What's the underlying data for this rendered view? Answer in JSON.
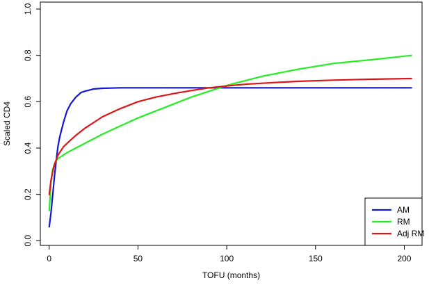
{
  "chart_data": {
    "type": "line",
    "title": "",
    "xlabel": "TOFU  (months)",
    "ylabel": "Scaled CD4",
    "xlim": [
      -5,
      210
    ],
    "ylim": [
      -0.02,
      1.03
    ],
    "xticks": [
      0,
      50,
      100,
      150,
      200
    ],
    "yticks": [
      0.0,
      0.2,
      0.4,
      0.6,
      0.8,
      1.0
    ],
    "xtick_labels": [
      "0",
      "50",
      "100",
      "150",
      "200"
    ],
    "ytick_labels": [
      "0.0",
      "0.2",
      "0.4",
      "0.6",
      "0.8",
      "1.0"
    ],
    "grid": false,
    "legend_position": "bottom-right",
    "series": [
      {
        "name": "AM",
        "color": "#1515d4",
        "x": [
          0,
          1,
          2,
          3,
          4,
          5,
          6,
          8,
          10,
          12,
          15,
          18,
          20,
          25,
          30,
          35,
          40,
          50,
          60,
          80,
          100,
          120,
          150,
          180,
          204
        ],
        "y": [
          0.06,
          0.12,
          0.2,
          0.28,
          0.35,
          0.41,
          0.45,
          0.51,
          0.56,
          0.59,
          0.62,
          0.64,
          0.645,
          0.655,
          0.658,
          0.659,
          0.66,
          0.66,
          0.66,
          0.66,
          0.66,
          0.66,
          0.66,
          0.66,
          0.66
        ]
      },
      {
        "name": "RM",
        "color": "#22ee22",
        "x": [
          0,
          1,
          2,
          3,
          4,
          5,
          8,
          10,
          15,
          20,
          30,
          40,
          50,
          60,
          70,
          80,
          90,
          100,
          110,
          120,
          140,
          160,
          180,
          204
        ],
        "y": [
          0.13,
          0.25,
          0.31,
          0.33,
          0.345,
          0.355,
          0.37,
          0.38,
          0.4,
          0.42,
          0.46,
          0.495,
          0.53,
          0.56,
          0.59,
          0.62,
          0.645,
          0.67,
          0.69,
          0.71,
          0.74,
          0.765,
          0.78,
          0.8
        ]
      },
      {
        "name": "Adj RM",
        "color": "#dd1515",
        "x": [
          0,
          1,
          2,
          3,
          4,
          5,
          8,
          10,
          15,
          20,
          30,
          40,
          50,
          60,
          70,
          80,
          90,
          100,
          110,
          120,
          140,
          160,
          180,
          204
        ],
        "y": [
          0.2,
          0.26,
          0.3,
          0.33,
          0.35,
          0.37,
          0.405,
          0.42,
          0.455,
          0.485,
          0.535,
          0.57,
          0.6,
          0.62,
          0.635,
          0.648,
          0.66,
          0.668,
          0.675,
          0.68,
          0.688,
          0.693,
          0.697,
          0.7
        ]
      }
    ]
  }
}
